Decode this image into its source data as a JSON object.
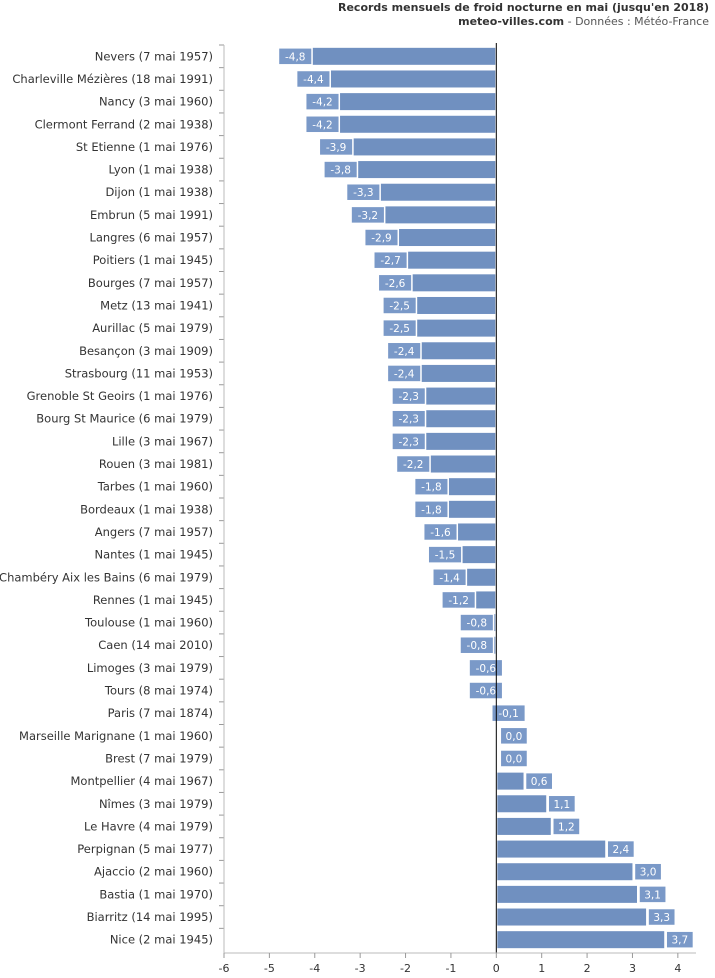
{
  "chart_data": {
    "type": "bar",
    "orientation": "horizontal",
    "title": "Records mensuels de froid nocturne en mai (jusqu'en 2018)",
    "subtitle_site": "meteo-villes.com",
    "subtitle_source": " - Données : Météo-France",
    "xlabel": "",
    "ylabel": "",
    "xlim": [
      -6,
      4.4
    ],
    "xticks": [
      -6,
      -5,
      -4,
      -3,
      -2,
      -1,
      0,
      1,
      2,
      3,
      4
    ],
    "grid": false,
    "bar_color": "#7090c0",
    "categories": [
      "Nevers (7 mai 1957)",
      "Charleville Mézières (18 mai 1991)",
      "Nancy (3 mai 1960)",
      "Clermont Ferrand (2 mai 1938)",
      "St Etienne (1 mai 1976)",
      "Lyon (1 mai 1938)",
      "Dijon (1 mai 1938)",
      "Embrun (5 mai 1991)",
      "Langres (6 mai 1957)",
      "Poitiers (1 mai 1945)",
      "Bourges (7 mai 1957)",
      "Metz (13 mai 1941)",
      "Aurillac (5 mai 1979)",
      "Besançon (3 mai 1909)",
      "Strasbourg (11 mai 1953)",
      "Grenoble St Geoirs (1 mai 1976)",
      "Bourg St Maurice (6 mai 1979)",
      "Lille (3 mai 1967)",
      "Rouen (3 mai 1981)",
      "Tarbes (1 mai 1960)",
      "Bordeaux (1 mai 1938)",
      "Angers (7 mai 1957)",
      "Nantes (1 mai 1945)",
      "Chambéry Aix les Bains (6 mai 1979)",
      "Rennes (1 mai 1945)",
      "Toulouse (1 mai 1960)",
      "Caen (14 mai 2010)",
      "Limoges (3 mai 1979)",
      "Tours (8 mai 1974)",
      "Paris (7 mai 1874)",
      "Marseille Marignane (1 mai 1960)",
      "Brest (7 mai 1979)",
      "Montpellier (4 mai 1967)",
      "Nîmes (3 mai 1979)",
      "Le Havre (4 mai 1979)",
      "Perpignan (5 mai 1977)",
      "Ajaccio (2 mai 1960)",
      "Bastia (1 mai 1970)",
      "Biarritz (14 mai 1995)",
      "Nice (2 mai 1945)"
    ],
    "values": [
      -4.8,
      -4.4,
      -4.2,
      -4.2,
      -3.9,
      -3.8,
      -3.3,
      -3.2,
      -2.9,
      -2.7,
      -2.6,
      -2.5,
      -2.5,
      -2.4,
      -2.4,
      -2.3,
      -2.3,
      -2.3,
      -2.2,
      -1.8,
      -1.8,
      -1.6,
      -1.5,
      -1.4,
      -1.2,
      -0.8,
      -0.8,
      -0.6,
      -0.6,
      -0.1,
      0.0,
      0.0,
      0.6,
      1.1,
      1.2,
      2.4,
      3.0,
      3.1,
      3.3,
      3.7
    ],
    "value_labels": [
      "-4,8",
      "-4,4",
      "-4,2",
      "-4,2",
      "-3,9",
      "-3,8",
      "-3,3",
      "-3,2",
      "-2,9",
      "-2,7",
      "-2,6",
      "-2,5",
      "-2,5",
      "-2,4",
      "-2,4",
      "-2,3",
      "-2,3",
      "-2,3",
      "-2,2",
      "-1,8",
      "-1,8",
      "-1,6",
      "-1,5",
      "-1,4",
      "-1,2",
      "-0,8",
      "-0,8",
      "-0,6",
      "-0,6",
      "-0,1",
      "0,0",
      "0,0",
      "0,6",
      "1,1",
      "1,2",
      "2,4",
      "3,0",
      "3,1",
      "3,3",
      "3,7"
    ]
  }
}
